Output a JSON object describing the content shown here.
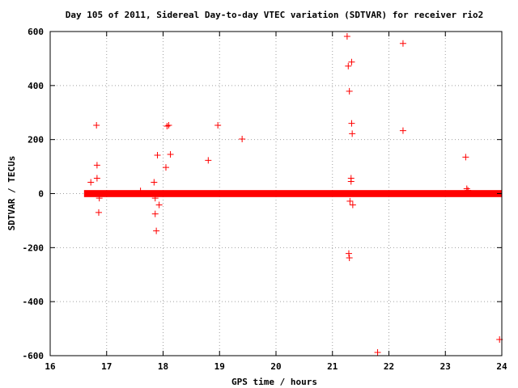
{
  "chart_data": {
    "type": "scatter",
    "title": "Day 105 of 2011, Sidereal Day-to-day VTEC variation (SDTVAR) for receiver rio2",
    "xlabel": "GPS time / hours",
    "ylabel": "SDTVAR / TECUs",
    "xlim": [
      16,
      24
    ],
    "ylim": [
      -600,
      600
    ],
    "xticks": [
      "16",
      "17",
      "18",
      "19",
      "20",
      "21",
      "22",
      "23",
      "24"
    ],
    "yticks": [
      "600",
      "400",
      "200",
      "0",
      "-200",
      "-400",
      "-600"
    ],
    "grid": true,
    "marker": "plus",
    "color": "#ff0000",
    "dense_band": {
      "x_start": 16.6,
      "x_end": 24.0,
      "y_center": 0,
      "y_halfwidth": 4
    },
    "points": [
      [
        16.72,
        42
      ],
      [
        16.82,
        253
      ],
      [
        16.83,
        105
      ],
      [
        16.83,
        57
      ],
      [
        16.87,
        -17
      ],
      [
        16.86,
        -70
      ],
      [
        17.6,
        10
      ],
      [
        17.84,
        42
      ],
      [
        17.86,
        -17
      ],
      [
        17.86,
        -75
      ],
      [
        17.88,
        -138
      ],
      [
        17.9,
        142
      ],
      [
        17.93,
        -42
      ],
      [
        18.05,
        97
      ],
      [
        18.07,
        250
      ],
      [
        18.1,
        253
      ],
      [
        18.13,
        145
      ],
      [
        18.8,
        123
      ],
      [
        18.97,
        253
      ],
      [
        19.4,
        202
      ],
      [
        21.26,
        582
      ],
      [
        21.28,
        472
      ],
      [
        21.34,
        487
      ],
      [
        21.3,
        379
      ],
      [
        21.34,
        260
      ],
      [
        21.35,
        222
      ],
      [
        21.29,
        -222
      ],
      [
        21.3,
        -238
      ],
      [
        21.31,
        -28
      ],
      [
        21.33,
        57
      ],
      [
        21.33,
        45
      ],
      [
        21.36,
        -42
      ],
      [
        21.8,
        -588
      ],
      [
        22.25,
        556
      ],
      [
        22.25,
        233
      ],
      [
        23.36,
        135
      ],
      [
        23.38,
        18
      ],
      [
        23.4,
        12
      ],
      [
        23.96,
        -540
      ]
    ]
  }
}
